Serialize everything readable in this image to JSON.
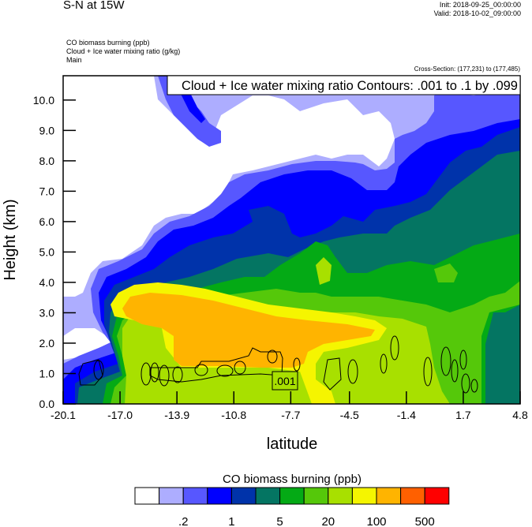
{
  "header": {
    "title": "S-N at 15W",
    "init": "Init: 2018-09-25_00:00:00",
    "valid": "Valid: 2018-10-02_09:00:00",
    "fields": [
      "CO biomass burning   (ppb)",
      "Cloud + Ice water mixing ratio   (g/kg)",
      "Main"
    ],
    "cross_section": "Cross-Section: (177,231) to (177,485)"
  },
  "chart_data": {
    "type": "heatmap",
    "title": "Cloud + Ice water mixing ratio Contours: .001 to .1 by .099",
    "xlabel": "latitude",
    "ylabel": "Height (km)",
    "xlim": [
      -20.1,
      4.8
    ],
    "ylim": [
      0,
      10.8
    ],
    "xticks": [
      "-20.1",
      "-17.0",
      "-13.9",
      "-10.8",
      "-7.7",
      "-4.5",
      "-1.4",
      "1.7",
      "4.8"
    ],
    "yticks": [
      "0.0",
      "1.0",
      "2.0",
      "3.0",
      "4.0",
      "5.0",
      "6.0",
      "7.0",
      "8.0",
      "9.0",
      "10.0"
    ],
    "contour_label": ".001",
    "colorbar": {
      "title": "CO biomass burning  (ppb)",
      "colors": [
        "#ffffff",
        "#adadff",
        "#5757ff",
        "#0000ff",
        "#0033aa",
        "#047562",
        "#04aa15",
        "#55c80a",
        "#a8e000",
        "#f5f500",
        "#ffb400",
        "#ff6000",
        "#ff0000"
      ],
      "labels": [
        ".2",
        "1",
        "5",
        "20",
        "100",
        "500"
      ]
    }
  }
}
